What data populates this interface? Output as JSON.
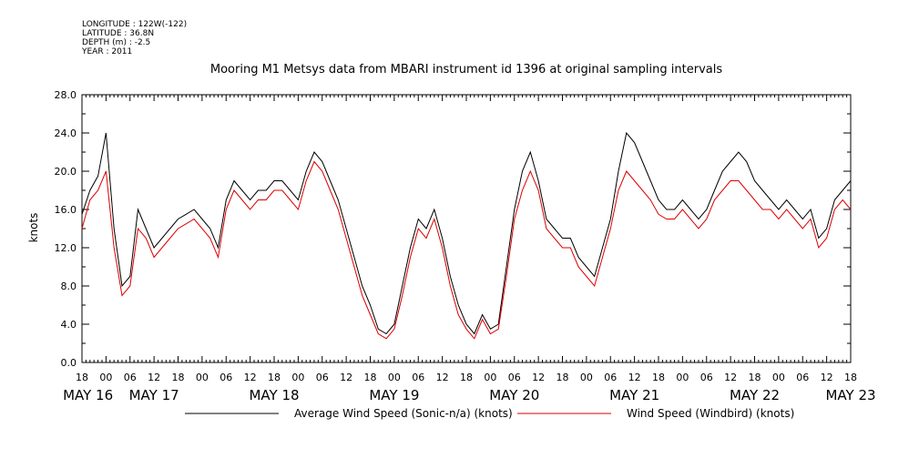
{
  "header": {
    "longitude": "LONGITUDE : 122W(-122)",
    "latitude": "LATITUDE : 36.8N",
    "depth": "DEPTH (m) : -2.5",
    "year": "YEAR : 2011"
  },
  "chart_data": {
    "type": "line",
    "title": "Mooring M1 Metsys data from MBARI instrument id 1396 at original sampling intervals",
    "ylabel": "knots",
    "ylim": [
      0,
      28
    ],
    "yticks": [
      "0.0",
      "4.0",
      "8.0",
      "12.0",
      "16.0",
      "20.0",
      "24.0",
      "28.0"
    ],
    "xlim_hours": [
      -6,
      186
    ],
    "xtick_labels": [
      "18",
      "00",
      "06",
      "12",
      "18",
      "00",
      "06",
      "12",
      "18",
      "00",
      "06",
      "12",
      "18",
      "00",
      "06",
      "12",
      "18",
      "00",
      "06",
      "12",
      "18",
      "00",
      "06",
      "12",
      "18",
      "00",
      "06",
      "12",
      "18",
      "00",
      "06",
      "12",
      "18"
    ],
    "date_labels": [
      {
        "label": "MAY 16",
        "hour": -4.5
      },
      {
        "label": "MAY 17",
        "hour": 12
      },
      {
        "label": "MAY 18",
        "hour": 42
      },
      {
        "label": "MAY 19",
        "hour": 72
      },
      {
        "label": "MAY 20",
        "hour": 102
      },
      {
        "label": "MAY 21",
        "hour": 132
      },
      {
        "label": "MAY 22",
        "hour": 162
      },
      {
        "label": "MAY 23",
        "hour": 186
      }
    ],
    "grid": false,
    "legend_position": "bottom",
    "x_key": [
      -6,
      -4,
      -2,
      0,
      2,
      4,
      6,
      8,
      10,
      12,
      14,
      16,
      18,
      20,
      22,
      24,
      26,
      28,
      30,
      32,
      34,
      36,
      38,
      40,
      42,
      44,
      46,
      48,
      50,
      52,
      54,
      56,
      58,
      60,
      62,
      64,
      66,
      68,
      70,
      72,
      74,
      76,
      78,
      80,
      82,
      84,
      86,
      88,
      90,
      92,
      94,
      96,
      98,
      100,
      102,
      104,
      106,
      108,
      110,
      112,
      114,
      116,
      118,
      120,
      122,
      124,
      126,
      128,
      130,
      132,
      134,
      136,
      138,
      140,
      142,
      144,
      146,
      148,
      150,
      152,
      154,
      156,
      158,
      160,
      162,
      164,
      166,
      168,
      170,
      172,
      174,
      176,
      178,
      180,
      182,
      184,
      186
    ],
    "series": [
      {
        "name": "Average Wind Speed (Sonic-n/a) (knots)",
        "color": "#000000",
        "values": [
          15.5,
          18,
          19.5,
          24,
          14,
          8,
          9,
          16,
          14,
          12,
          13,
          14,
          15,
          15.5,
          16,
          15,
          14,
          12,
          17,
          19,
          18,
          17,
          18,
          18,
          19,
          19,
          18,
          17,
          20,
          22,
          21,
          19,
          17,
          14,
          11,
          8,
          6,
          3.5,
          3,
          4,
          8,
          12,
          15,
          14,
          16,
          13,
          9,
          6,
          4,
          3,
          5,
          3.5,
          4,
          10,
          16,
          20,
          22,
          19,
          15,
          14,
          13,
          13,
          11,
          10,
          9,
          12,
          15,
          20,
          24,
          23,
          21,
          19,
          17,
          16,
          16,
          17,
          16,
          15,
          16,
          18,
          20,
          21,
          22,
          21,
          19,
          18,
          17,
          16,
          17,
          16,
          15,
          16,
          13,
          14,
          17,
          18,
          19
        ]
      },
      {
        "name": "Wind Speed (Windbird) (knots)",
        "color": "#dd0000",
        "values": [
          14,
          17,
          18,
          20,
          12,
          7,
          8,
          14,
          13,
          11,
          12,
          13,
          14,
          14.5,
          15,
          14,
          13,
          11,
          16,
          18,
          17,
          16,
          17,
          17,
          18,
          18,
          17,
          16,
          19,
          21,
          20,
          18,
          16,
          13,
          10,
          7,
          5,
          3,
          2.5,
          3.5,
          7,
          11,
          14,
          13,
          15,
          12,
          8,
          5,
          3.5,
          2.5,
          4.5,
          3,
          3.5,
          9,
          15,
          18,
          20,
          18,
          14,
          13,
          12,
          12,
          10,
          9,
          8,
          11,
          14,
          18,
          20,
          19,
          18,
          17,
          15.5,
          15,
          15,
          16,
          15,
          14,
          15,
          17,
          18,
          19,
          19,
          18,
          17,
          16,
          16,
          15,
          16,
          15,
          14,
          15,
          12,
          13,
          16,
          17,
          16
        ]
      }
    ]
  }
}
